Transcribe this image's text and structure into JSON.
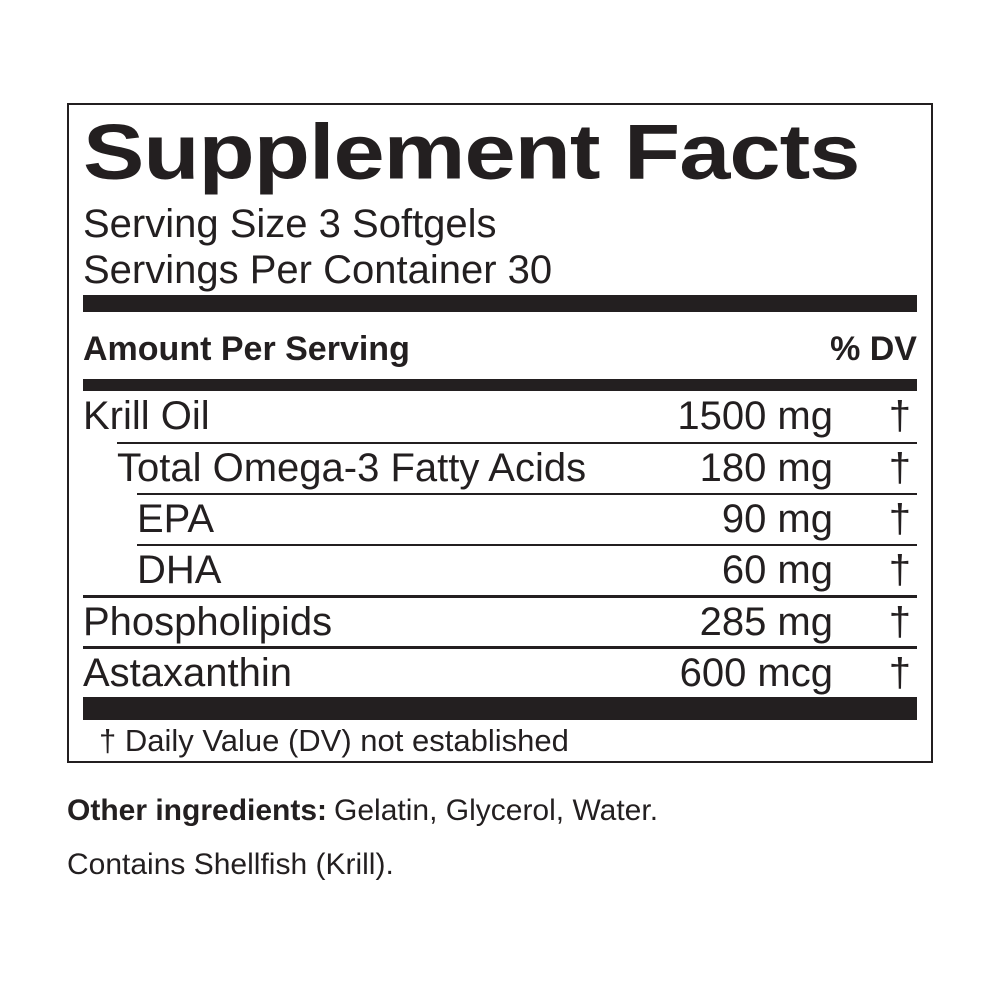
{
  "colors": {
    "ink": "#231f20",
    "background": "#ffffff"
  },
  "supplement_facts": {
    "title": "Supplement Facts",
    "serving_size": "Serving Size 3 Softgels",
    "servings_per_container": "Servings Per Container 30",
    "columns": {
      "amount_header": "Amount Per Serving",
      "dv_header": "% DV"
    },
    "rows": [
      {
        "name": "Krill Oil",
        "amount": "1500 mg",
        "daily_value": "†",
        "indent": 0
      },
      {
        "name": "Total Omega-3 Fatty Acids",
        "amount": "180 mg",
        "daily_value": "†",
        "indent": 1
      },
      {
        "name": "EPA",
        "amount": "90 mg",
        "daily_value": "†",
        "indent": 2
      },
      {
        "name": "DHA",
        "amount": "60 mg",
        "daily_value": "†",
        "indent": 2
      },
      {
        "name": "Phospholipids",
        "amount": "285 mg",
        "daily_value": "†",
        "indent": 0
      },
      {
        "name": "Astaxanthin",
        "amount": "600 mcg",
        "daily_value": "†",
        "indent": 0
      }
    ],
    "footnote": "† Daily Value (DV) not established"
  },
  "other_ingredients": {
    "label": "Other ingredients:",
    "list": "Gelatin, Glycerol, Water."
  },
  "allergen_statement": "Contains Shellfish (Krill)."
}
